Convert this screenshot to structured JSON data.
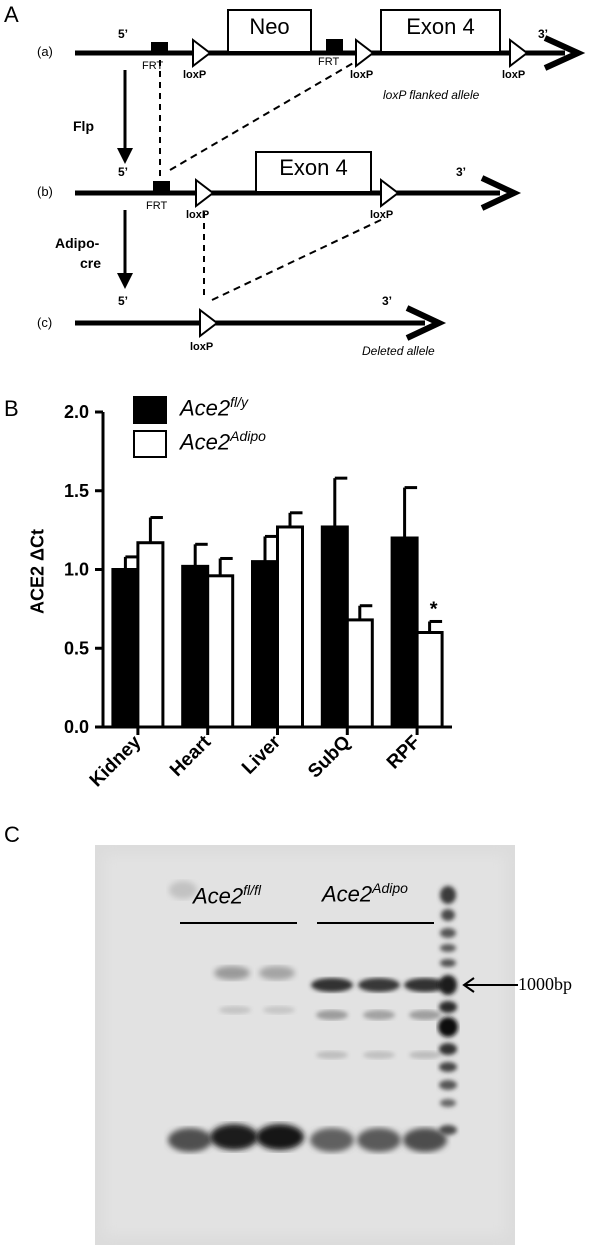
{
  "panel_a": {
    "letter": "A",
    "rows": [
      {
        "id": "a",
        "label": "(a)"
      },
      {
        "id": "b",
        "label": "(b)"
      },
      {
        "id": "c",
        "label": "(c)"
      }
    ],
    "five_prime": "5’",
    "three_prime": "3’",
    "neo": "Neo",
    "exon": "Exon 4",
    "frt": "FRT",
    "loxp": "loxP",
    "flp": "Flp",
    "adipocre_line1": "Adipo-",
    "adipocre_line2": "cre",
    "note_a": "loxP flanked allele",
    "note_c": "Deleted allele"
  },
  "panel_b": {
    "letter": "B",
    "legend": [
      {
        "base": "Ace2",
        "sup": "fl/y",
        "color": "#000000"
      },
      {
        "base": "Ace2",
        "sup": "Adipo",
        "color": "#ffffff"
      }
    ]
  },
  "chart_data": {
    "type": "bar",
    "ylabel": "ACE2 ΔCt",
    "ylim": [
      0.0,
      2.0
    ],
    "yticks": [
      "0.0",
      "0.5",
      "1.0",
      "1.5",
      "2.0"
    ],
    "categories": [
      "Kidney",
      "Heart",
      "Liver",
      "SubQ",
      "RPF"
    ],
    "series": [
      {
        "name": "Ace2fl/y",
        "color": "#000000",
        "values": [
          1.0,
          1.02,
          1.05,
          1.27,
          1.2
        ],
        "errors": [
          0.08,
          0.14,
          0.16,
          0.31,
          0.32
        ]
      },
      {
        "name": "Ace2Adipo",
        "color": "#ffffff",
        "values": [
          1.17,
          0.96,
          1.27,
          0.68,
          0.6
        ],
        "errors": [
          0.16,
          0.11,
          0.09,
          0.09,
          0.07
        ]
      }
    ],
    "annotations": [
      {
        "category": "RPF",
        "series": 1,
        "text": "*"
      }
    ],
    "grid": false
  },
  "panel_c": {
    "letter": "C",
    "group1": {
      "base": "Ace2",
      "sup": "fl/fl"
    },
    "group2": {
      "base": "Ace2",
      "sup": "Adipo"
    },
    "marker": "1000bp"
  }
}
